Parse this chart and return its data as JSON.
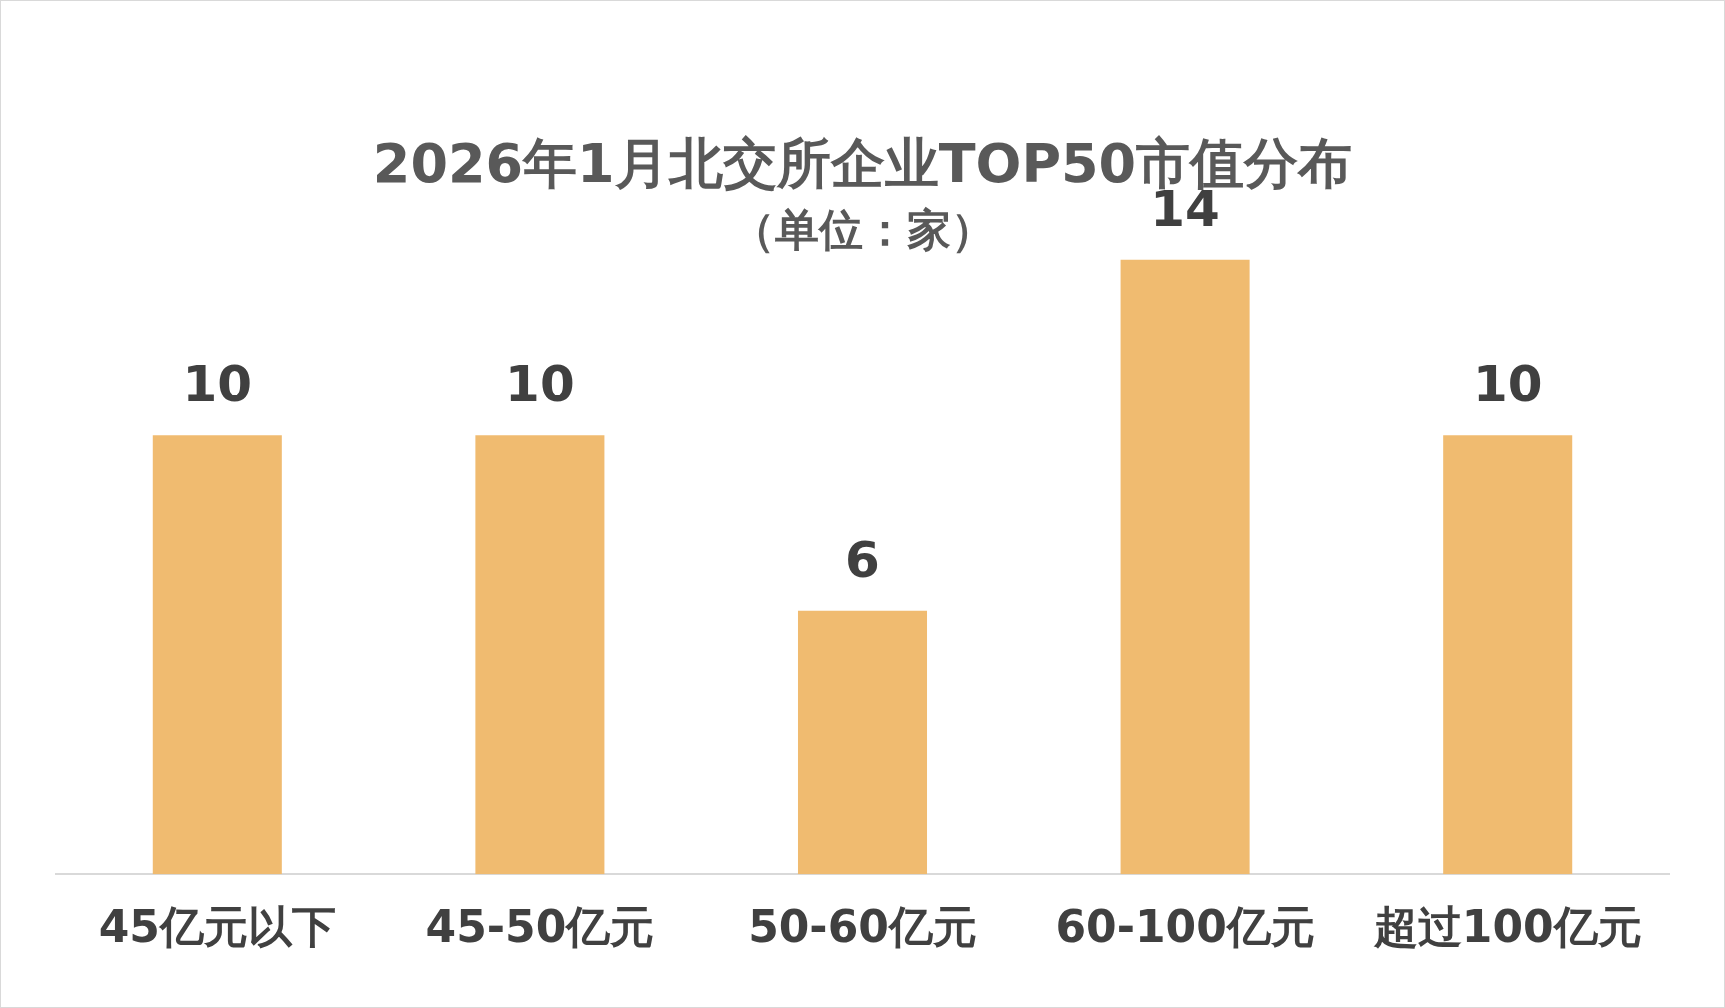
{
  "chart_data": {
    "type": "bar",
    "title": "2026年1月北交所企业TOP50市值分布",
    "subtitle": "（单位：家）",
    "categories": [
      "45亿元以下",
      "45-50亿元",
      "50-60亿元",
      "60-100亿元",
      "超过100亿元"
    ],
    "values": [
      10,
      10,
      6,
      14,
      10
    ],
    "color": "#f0bb70",
    "data_labels": true
  }
}
